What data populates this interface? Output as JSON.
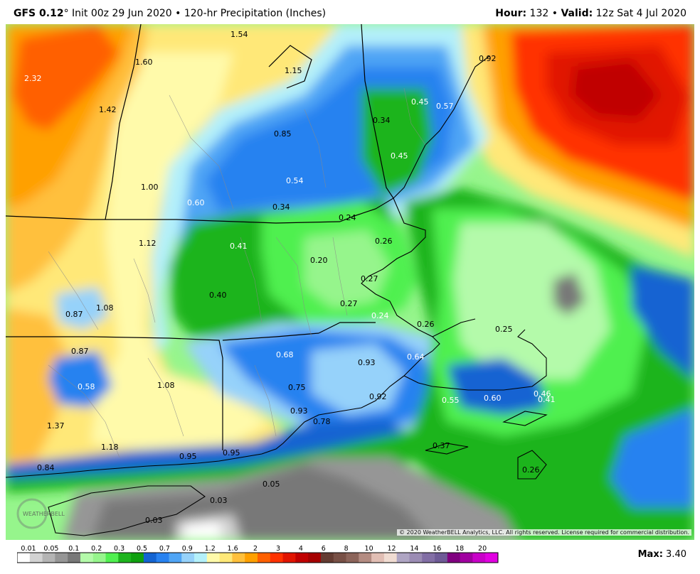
{
  "header": {
    "model": "GFS 0.12",
    "degree": "°",
    "init": "Init 00z 29 Jun 2020",
    "bullet": "•",
    "product": "120-hr Precipitation (Inches)",
    "hour_label": "Hour:",
    "hour_value": "132",
    "valid_label": "Valid:",
    "valid_value": "12z Sat 4 Jul 2020"
  },
  "map": {
    "labels": [
      {
        "text": "1.54",
        "c": "dark"
      },
      {
        "text": "1.15",
        "c": "dark"
      },
      {
        "text": "0.92",
        "c": "dark"
      },
      {
        "text": "2.32",
        "c": "light"
      },
      {
        "text": "1.60",
        "c": "dark"
      },
      {
        "text": "1.42",
        "c": "dark"
      },
      {
        "text": "0.45",
        "c": "light"
      },
      {
        "text": "0.57",
        "c": "light"
      },
      {
        "text": "0.34",
        "c": "dark"
      },
      {
        "text": "0.85",
        "c": "dark"
      },
      {
        "text": "0.45",
        "c": "light"
      },
      {
        "text": "0.54",
        "c": "light"
      },
      {
        "text": "1.00",
        "c": "dark"
      },
      {
        "text": "0.60",
        "c": "light"
      },
      {
        "text": "0.34",
        "c": "dark"
      },
      {
        "text": "0.24",
        "c": "dark"
      },
      {
        "text": "0.26",
        "c": "dark"
      },
      {
        "text": "1.12",
        "c": "dark"
      },
      {
        "text": "0.41",
        "c": "light"
      },
      {
        "text": "0.20",
        "c": "dark"
      },
      {
        "text": "0.27",
        "c": "dark"
      },
      {
        "text": "0.40",
        "c": "dark"
      },
      {
        "text": "0.27",
        "c": "dark"
      },
      {
        "text": "0.24",
        "c": "light"
      },
      {
        "text": "0.87",
        "c": "dark"
      },
      {
        "text": "1.08",
        "c": "dark"
      },
      {
        "text": "0.26",
        "c": "dark"
      },
      {
        "text": "0.25",
        "c": "dark"
      },
      {
        "text": "0.87",
        "c": "dark"
      },
      {
        "text": "0.68",
        "c": "light"
      },
      {
        "text": "0.93",
        "c": "dark"
      },
      {
        "text": "0.64",
        "c": "light"
      },
      {
        "text": "0.58",
        "c": "light"
      },
      {
        "text": "1.08",
        "c": "dark"
      },
      {
        "text": "0.75",
        "c": "dark"
      },
      {
        "text": "0.92",
        "c": "dark"
      },
      {
        "text": "0.55",
        "c": "light"
      },
      {
        "text": "0.60",
        "c": "light"
      },
      {
        "text": "0.46",
        "c": "light"
      },
      {
        "text": "0.41",
        "c": "light"
      },
      {
        "text": "0.93",
        "c": "dark"
      },
      {
        "text": "0.78",
        "c": "dark"
      },
      {
        "text": "1.37",
        "c": "dark"
      },
      {
        "text": "1.18",
        "c": "dark"
      },
      {
        "text": "0.37",
        "c": "dark"
      },
      {
        "text": "0.95",
        "c": "dark"
      },
      {
        "text": "0.95",
        "c": "dark"
      },
      {
        "text": "0.84",
        "c": "dark"
      },
      {
        "text": "0.26",
        "c": "dark"
      },
      {
        "text": "0.05",
        "c": "dark"
      },
      {
        "text": "0.03",
        "c": "dark"
      },
      {
        "text": "0.03",
        "c": "dark"
      }
    ],
    "copyright": "© 2020 WeatherBELL Analytics, LLC. All rights reserved. License required for commercial distribution.",
    "logo_text": "WEATHERBELL"
  },
  "legend": {
    "values": [
      "0.01",
      "0.05",
      "0.1",
      "0.2",
      "0.3",
      "0.5",
      "0.7",
      "0.9",
      "1.2",
      "1.6",
      "2",
      "3",
      "4",
      "6",
      "8",
      "10",
      "12",
      "14",
      "16",
      "18",
      "20"
    ],
    "colors": [
      "#ffffff",
      "#d2d2d2",
      "#b4b4b4",
      "#969696",
      "#787878",
      "#b4faaa",
      "#96f58c",
      "#50f050",
      "#1eb41e",
      "#0fa00f",
      "#1464d2",
      "#2882f0",
      "#50a5f5",
      "#96d2fa",
      "#b4f0fa",
      "#fffaaa",
      "#ffe878",
      "#ffc03c",
      "#ffa000",
      "#ff6000",
      "#ff3200",
      "#e11400",
      "#c00000",
      "#a50000",
      "#643c32",
      "#785046",
      "#8c645a",
      "#b48c82",
      "#e1beb4",
      "#f0dcd2",
      "#afa5c3",
      "#9b8cb4",
      "#826ea5",
      "#6e5a96",
      "#800080",
      "#a000a0",
      "#c800c8",
      "#e100e1"
    ],
    "max_label": "Max:",
    "max_value": "3.40"
  }
}
